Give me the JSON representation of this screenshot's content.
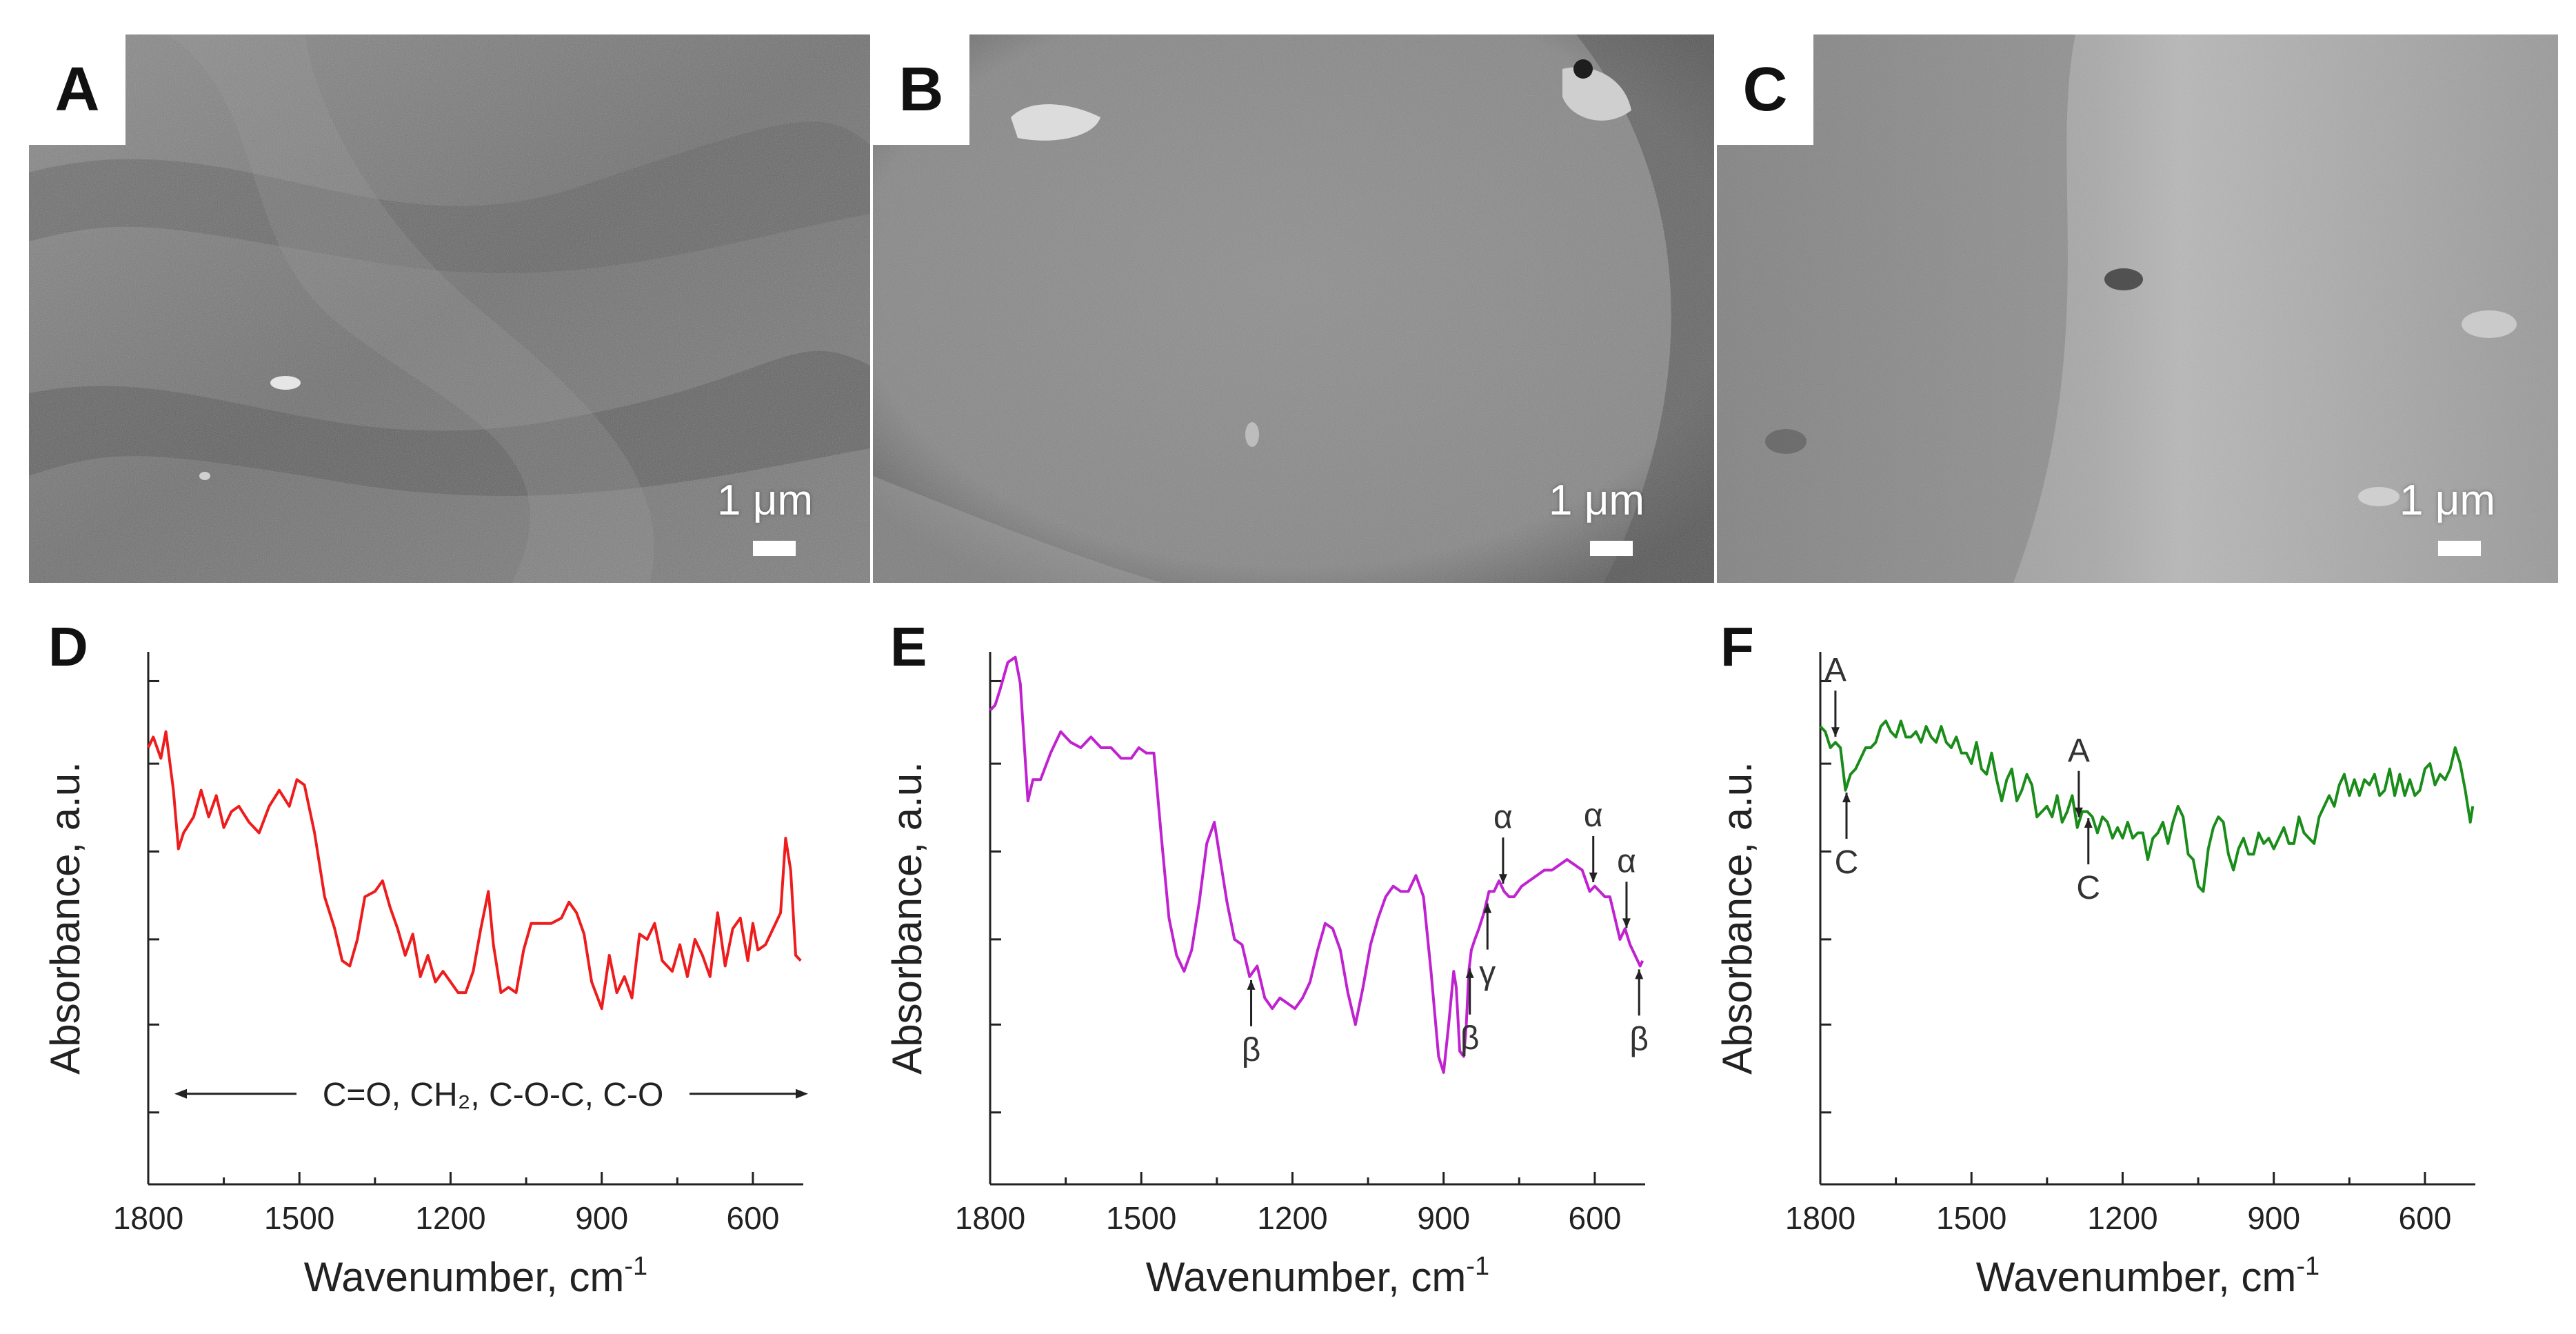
{
  "sem_panels": [
    {
      "label": "A",
      "scale": "1 μm"
    },
    {
      "label": "B",
      "scale": "1 μm"
    },
    {
      "label": "C",
      "scale": "1 μm"
    }
  ],
  "chart_data": [
    {
      "type": "line",
      "panel": "D",
      "color": "#ee1c1c",
      "xlabel": "Wavenumber, cm",
      "xlabel_sup": "-1",
      "ylabel": "Absorbance, a.u.",
      "xlim": [
        1800,
        500
      ],
      "ylim": [
        0,
        10
      ],
      "xticks": [
        1800,
        1500,
        1200,
        900,
        600
      ],
      "x": [
        1800,
        1790,
        1775,
        1765,
        1750,
        1740,
        1730,
        1710,
        1695,
        1680,
        1665,
        1650,
        1635,
        1620,
        1600,
        1580,
        1560,
        1540,
        1520,
        1505,
        1490,
        1470,
        1450,
        1430,
        1415,
        1400,
        1385,
        1370,
        1350,
        1335,
        1320,
        1305,
        1290,
        1275,
        1260,
        1245,
        1230,
        1215,
        1200,
        1185,
        1170,
        1155,
        1140,
        1125,
        1115,
        1100,
        1085,
        1070,
        1055,
        1040,
        1020,
        1000,
        980,
        965,
        950,
        935,
        920,
        900,
        885,
        870,
        855,
        840,
        825,
        810,
        795,
        780,
        760,
        745,
        730,
        715,
        700,
        685,
        670,
        655,
        640,
        625,
        610,
        600,
        590,
        575,
        560,
        545,
        535,
        525,
        515,
        505
      ],
      "y": [
        8.2,
        8.4,
        8.0,
        8.5,
        7.4,
        6.3,
        6.6,
        6.9,
        7.4,
        6.9,
        7.3,
        6.7,
        7.0,
        7.1,
        6.8,
        6.6,
        7.1,
        7.4,
        7.1,
        7.6,
        7.5,
        6.6,
        5.4,
        4.8,
        4.2,
        4.1,
        4.6,
        5.4,
        5.5,
        5.7,
        5.2,
        4.8,
        4.3,
        4.7,
        3.9,
        4.3,
        3.8,
        4.0,
        3.8,
        3.6,
        3.6,
        4.0,
        4.8,
        5.5,
        4.5,
        3.6,
        3.7,
        3.6,
        4.4,
        4.9,
        4.9,
        4.9,
        5.0,
        5.3,
        5.1,
        4.7,
        3.8,
        3.3,
        4.3,
        3.6,
        3.9,
        3.5,
        4.7,
        4.6,
        4.9,
        4.2,
        4.0,
        4.5,
        3.9,
        4.6,
        4.3,
        3.9,
        5.1,
        4.1,
        4.8,
        5.0,
        4.2,
        4.9,
        4.4,
        4.5,
        4.8,
        5.1,
        6.5,
        5.9,
        4.3,
        4.2
      ],
      "annotation": "C=O, CH₂, C-O-C, C-O"
    },
    {
      "type": "line",
      "panel": "E",
      "color": "#c022d0",
      "xlabel": "Wavenumber, cm",
      "xlabel_sup": "-1",
      "ylabel": "Absorbance, a.u.",
      "xlim": [
        1800,
        500
      ],
      "ylim": [
        0,
        10
      ],
      "xticks": [
        1800,
        1500,
        1200,
        900,
        600
      ],
      "x": [
        1800,
        1790,
        1780,
        1765,
        1750,
        1740,
        1725,
        1715,
        1700,
        1680,
        1660,
        1640,
        1620,
        1600,
        1580,
        1560,
        1540,
        1520,
        1505,
        1490,
        1475,
        1460,
        1445,
        1430,
        1415,
        1400,
        1385,
        1370,
        1355,
        1345,
        1330,
        1315,
        1300,
        1285,
        1270,
        1255,
        1240,
        1225,
        1210,
        1195,
        1180,
        1165,
        1150,
        1135,
        1120,
        1105,
        1090,
        1075,
        1060,
        1045,
        1030,
        1015,
        1000,
        985,
        970,
        955,
        940,
        925,
        910,
        900,
        890,
        880,
        875,
        868,
        860,
        855,
        850,
        845,
        838,
        830,
        820,
        810,
        800,
        790,
        780,
        770,
        760,
        745,
        730,
        715,
        700,
        685,
        670,
        655,
        640,
        625,
        610,
        600,
        590,
        580,
        570,
        560,
        550,
        540,
        530,
        520,
        510,
        505
      ],
      "y": [
        8.9,
        9.0,
        9.3,
        9.8,
        9.9,
        9.4,
        7.2,
        7.6,
        7.6,
        8.1,
        8.5,
        8.3,
        8.2,
        8.4,
        8.2,
        8.2,
        8.0,
        8.0,
        8.2,
        8.1,
        8.1,
        6.5,
        5.0,
        4.3,
        4.0,
        4.4,
        5.3,
        6.4,
        6.8,
        6.2,
        5.3,
        4.6,
        4.5,
        3.9,
        4.1,
        3.5,
        3.3,
        3.5,
        3.4,
        3.3,
        3.5,
        3.8,
        4.4,
        4.9,
        4.8,
        4.4,
        3.6,
        3.0,
        3.7,
        4.5,
        5.0,
        5.4,
        5.6,
        5.5,
        5.5,
        5.8,
        5.4,
        4.0,
        2.4,
        2.1,
        3.0,
        4.0,
        3.7,
        2.5,
        2.4,
        3.0,
        4.0,
        4.4,
        4.6,
        4.8,
        5.1,
        5.5,
        5.5,
        5.7,
        5.5,
        5.4,
        5.4,
        5.6,
        5.7,
        5.8,
        5.9,
        5.9,
        6.0,
        6.1,
        6.0,
        5.9,
        5.5,
        5.6,
        5.5,
        5.4,
        5.4,
        5.0,
        4.6,
        4.8,
        4.5,
        4.3,
        4.1,
        4.2
      ],
      "markers": [
        {
          "label": "β",
          "x": 1282,
          "dir": "down"
        },
        {
          "label": "β",
          "x": 848,
          "dir": "down"
        },
        {
          "label": "γ",
          "x": 813,
          "dir": "down"
        },
        {
          "label": "α",
          "x": 782,
          "dir": "up"
        },
        {
          "label": "α",
          "x": 603,
          "dir": "up"
        },
        {
          "label": "α",
          "x": 537,
          "dir": "up"
        },
        {
          "label": "β",
          "x": 512,
          "dir": "down"
        }
      ]
    },
    {
      "type": "line",
      "panel": "F",
      "color": "#1a8c1a",
      "xlabel": "Wavenumber, cm",
      "xlabel_sup": "-1",
      "ylabel": "Absorbance, a.u.",
      "xlim": [
        1800,
        500
      ],
      "ylim": [
        0,
        10
      ],
      "xticks": [
        1800,
        1500,
        1200,
        900,
        600
      ],
      "x": [
        1800,
        1790,
        1780,
        1770,
        1760,
        1750,
        1740,
        1730,
        1720,
        1710,
        1700,
        1690,
        1680,
        1670,
        1660,
        1650,
        1640,
        1630,
        1620,
        1610,
        1600,
        1590,
        1580,
        1570,
        1560,
        1550,
        1540,
        1530,
        1520,
        1510,
        1500,
        1490,
        1480,
        1470,
        1460,
        1450,
        1440,
        1430,
        1420,
        1410,
        1400,
        1390,
        1380,
        1370,
        1360,
        1350,
        1340,
        1330,
        1320,
        1310,
        1300,
        1290,
        1280,
        1270,
        1260,
        1250,
        1240,
        1230,
        1220,
        1210,
        1200,
        1190,
        1180,
        1170,
        1160,
        1150,
        1140,
        1130,
        1120,
        1110,
        1100,
        1090,
        1080,
        1070,
        1060,
        1050,
        1040,
        1030,
        1020,
        1010,
        1000,
        990,
        980,
        970,
        960,
        950,
        940,
        930,
        920,
        910,
        900,
        890,
        880,
        870,
        860,
        850,
        840,
        830,
        820,
        810,
        800,
        790,
        780,
        770,
        760,
        750,
        740,
        730,
        720,
        710,
        700,
        690,
        680,
        670,
        660,
        650,
        640,
        630,
        620,
        610,
        600,
        590,
        580,
        570,
        560,
        550,
        540,
        530,
        520,
        510,
        505
      ],
      "y": [
        8.6,
        8.5,
        8.2,
        8.3,
        8.2,
        7.4,
        7.7,
        7.8,
        8.0,
        8.2,
        8.2,
        8.3,
        8.6,
        8.7,
        8.5,
        8.4,
        8.7,
        8.4,
        8.4,
        8.5,
        8.3,
        8.6,
        8.4,
        8.3,
        8.6,
        8.3,
        8.2,
        8.4,
        8.1,
        8.1,
        7.9,
        8.3,
        7.8,
        7.7,
        8.1,
        7.6,
        7.2,
        7.6,
        7.8,
        7.2,
        7.4,
        7.7,
        7.5,
        6.9,
        7.0,
        7.1,
        6.9,
        7.3,
        6.8,
        7.0,
        7.3,
        6.7,
        7.0,
        7.0,
        6.9,
        6.6,
        6.9,
        6.8,
        6.5,
        6.7,
        6.5,
        6.8,
        6.5,
        6.6,
        6.6,
        6.1,
        6.5,
        6.6,
        6.8,
        6.4,
        6.8,
        7.1,
        6.9,
        6.2,
        6.1,
        5.6,
        5.5,
        6.3,
        6.7,
        6.9,
        6.8,
        6.2,
        5.9,
        6.3,
        6.5,
        6.2,
        6.2,
        6.6,
        6.4,
        6.5,
        6.3,
        6.5,
        6.7,
        6.4,
        6.4,
        6.9,
        6.6,
        6.5,
        6.4,
        6.9,
        7.1,
        7.3,
        7.1,
        7.5,
        7.7,
        7.3,
        7.6,
        7.3,
        7.6,
        7.5,
        7.7,
        7.3,
        7.4,
        7.8,
        7.3,
        7.7,
        7.3,
        7.6,
        7.3,
        7.4,
        7.8,
        7.9,
        7.5,
        7.7,
        7.6,
        7.8,
        8.2,
        7.9,
        7.4,
        6.8,
        7.1
      ],
      "markers": [
        {
          "label": "A",
          "x": 1770,
          "dir": "up"
        },
        {
          "label": "C",
          "x": 1748,
          "dir": "down"
        },
        {
          "label": "A",
          "x": 1287,
          "dir": "up"
        },
        {
          "label": "C",
          "x": 1268,
          "dir": "down"
        }
      ]
    }
  ]
}
